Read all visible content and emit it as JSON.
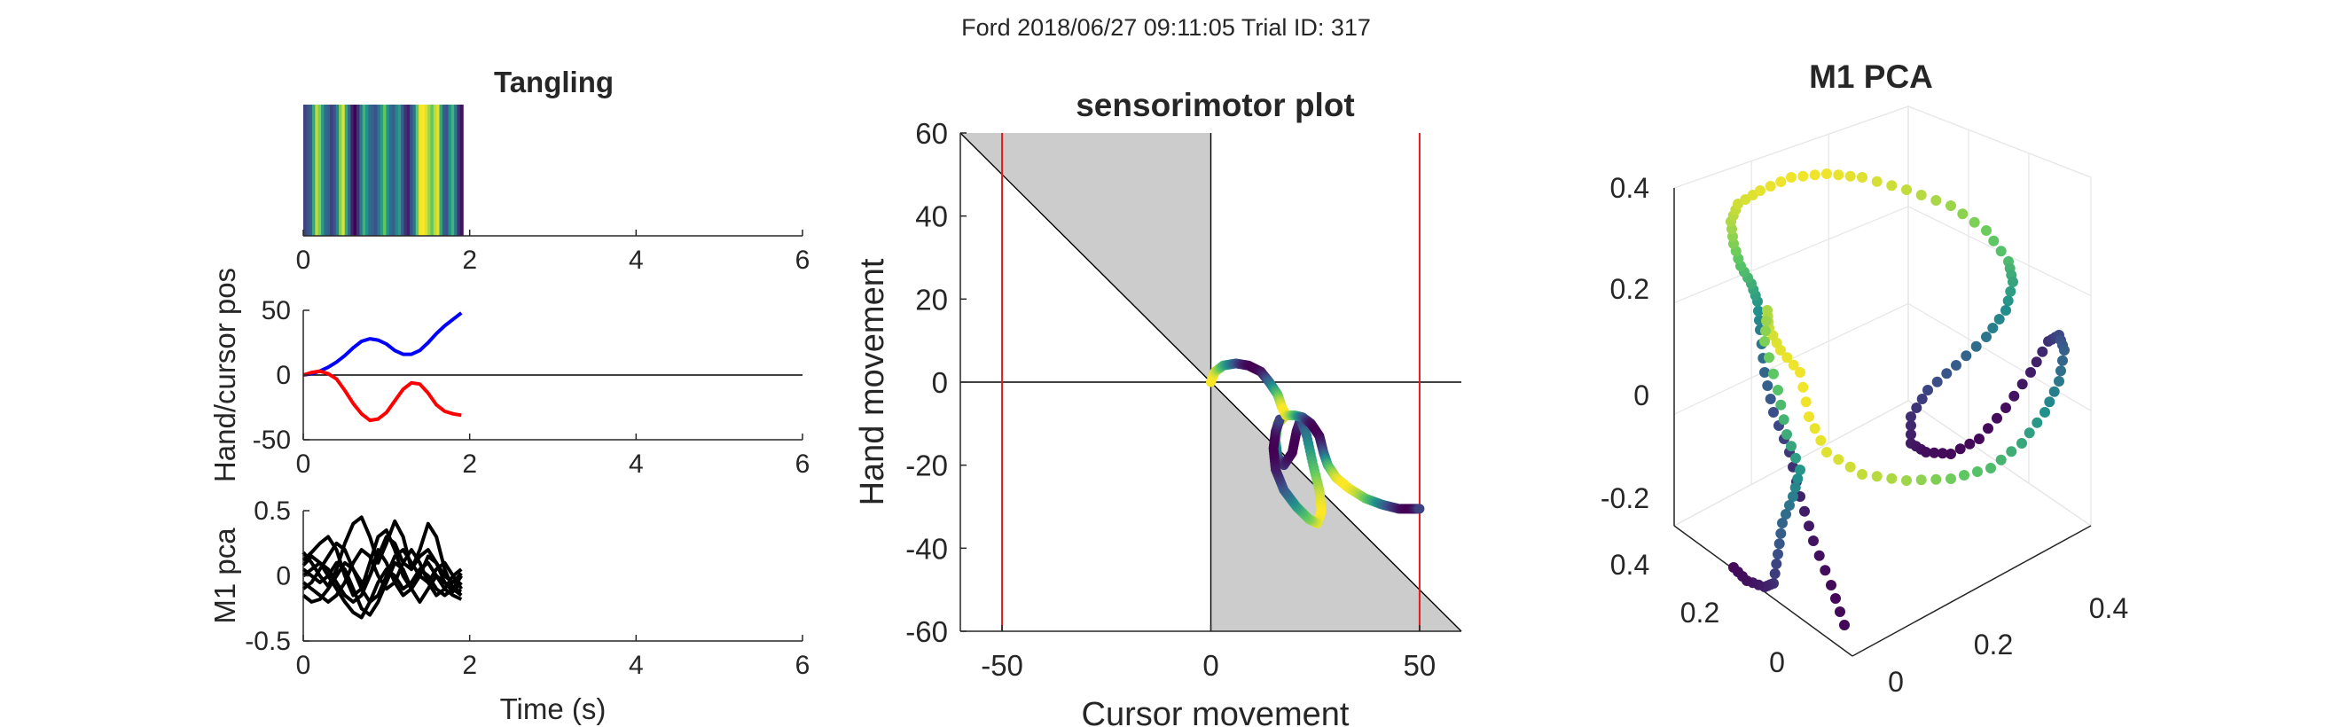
{
  "figure_title": "Ford 2018/06/27 09:11:05 Trial ID: 317",
  "colors": {
    "background": "#ffffff",
    "axis": "#262626",
    "hand": "#0000ff",
    "cursor": "#ff0000",
    "m1": "#000000",
    "shade": "#cccccc",
    "limit_lines": "#e41a1c",
    "zero_line": "#000000",
    "grid3d": "#e6e6e6",
    "viridis": [
      "#440154",
      "#3b528b",
      "#21918c",
      "#5ec962",
      "#fde725"
    ]
  },
  "chart_data": [
    {
      "id": "tangling",
      "type": "heatmap",
      "title": "Tangling",
      "xlim": [
        0,
        6
      ],
      "xticks": [
        0,
        2,
        4,
        6
      ],
      "x_extent": [
        0,
        1.92
      ],
      "colormap": "viridis",
      "values": [
        0.2,
        0.25,
        0.3,
        0.6,
        0.9,
        0.8,
        0.55,
        0.35,
        0.3,
        0.2,
        0.25,
        0.45,
        0.8,
        0.95,
        0.6,
        0.35,
        0.1,
        0.0,
        0.15,
        0.4,
        0.65,
        0.5,
        0.35,
        0.3,
        0.25,
        0.4,
        0.55,
        0.75,
        0.5,
        0.35,
        0.3,
        0.45,
        0.55,
        0.3,
        0.15,
        0.1,
        0.25,
        0.4,
        0.75,
        0.98,
        1.0,
        0.95,
        0.85,
        0.75,
        0.9,
        0.95,
        0.6,
        0.3,
        0.25,
        0.5,
        0.65,
        0.4,
        0.15,
        0.05
      ]
    },
    {
      "id": "hand-cursor",
      "type": "line",
      "xlim": [
        0,
        6
      ],
      "xticks": [
        0,
        2,
        4,
        6
      ],
      "ylim": [
        -50,
        50
      ],
      "yticks": [
        -50,
        0,
        50
      ],
      "ylabel": "Hand/cursor pos",
      "baseline": 0,
      "series": [
        {
          "color": "#0000ff",
          "x": [
            0,
            0.1,
            0.2,
            0.3,
            0.4,
            0.5,
            0.6,
            0.7,
            0.8,
            0.9,
            1.0,
            1.1,
            1.2,
            1.3,
            1.4,
            1.5,
            1.6,
            1.7,
            1.8,
            1.9
          ],
          "y": [
            0,
            1,
            3,
            6,
            10,
            15,
            21,
            26,
            28,
            27,
            24,
            19,
            16,
            16,
            19,
            25,
            32,
            38,
            43,
            48
          ]
        },
        {
          "color": "#ff0000",
          "x": [
            0,
            0.1,
            0.2,
            0.3,
            0.4,
            0.5,
            0.6,
            0.7,
            0.8,
            0.9,
            1.0,
            1.1,
            1.2,
            1.3,
            1.4,
            1.5,
            1.6,
            1.7,
            1.8,
            1.9
          ],
          "y": [
            0,
            2,
            3,
            1,
            -3,
            -12,
            -22,
            -30,
            -35,
            -34,
            -29,
            -20,
            -11,
            -6,
            -7,
            -14,
            -23,
            -28,
            -30,
            -31
          ]
        }
      ]
    },
    {
      "id": "m1-pca",
      "type": "line",
      "xlim": [
        0,
        6
      ],
      "xticks": [
        0,
        2,
        4,
        6
      ],
      "ylim": [
        -0.5,
        0.5
      ],
      "yticks": [
        -0.5,
        0,
        0.5
      ],
      "xlabel": "Time (s)",
      "ylabel": "M1 pca",
      "x": [
        0,
        0.1,
        0.2,
        0.3,
        0.4,
        0.5,
        0.6,
        0.7,
        0.8,
        0.9,
        1.0,
        1.1,
        1.2,
        1.3,
        1.4,
        1.5,
        1.6,
        1.7,
        1.8,
        1.9
      ],
      "series": [
        {
          "color": "#000000",
          "y": [
            0.18,
            0.1,
            0.0,
            -0.08,
            0.05,
            0.25,
            0.4,
            0.45,
            0.3,
            0.1,
            0.25,
            0.42,
            0.3,
            0.05,
            0.2,
            0.4,
            0.3,
            0.05,
            -0.1,
            0.0
          ]
        },
        {
          "color": "#000000",
          "y": [
            0.12,
            0.18,
            0.25,
            0.3,
            0.2,
            0.0,
            -0.15,
            -0.1,
            0.1,
            0.3,
            0.35,
            0.2,
            0.0,
            -0.1,
            0.0,
            0.15,
            0.1,
            -0.05,
            -0.12,
            -0.05
          ]
        },
        {
          "color": "#000000",
          "y": [
            -0.1,
            -0.05,
            0.05,
            0.15,
            0.25,
            0.2,
            0.05,
            -0.05,
            0.0,
            0.15,
            0.3,
            0.25,
            0.1,
            0.05,
            0.15,
            0.2,
            0.1,
            0.0,
            -0.05,
            0.02
          ]
        },
        {
          "color": "#000000",
          "y": [
            -0.15,
            -0.2,
            -0.18,
            -0.1,
            0.0,
            0.1,
            0.05,
            -0.1,
            -0.2,
            -0.15,
            0.0,
            0.15,
            0.2,
            0.1,
            0.0,
            -0.05,
            0.05,
            0.1,
            0.0,
            -0.1
          ]
        },
        {
          "color": "#000000",
          "y": [
            0.05,
            0.0,
            -0.05,
            0.0,
            0.1,
            0.05,
            -0.1,
            -0.25,
            -0.3,
            -0.2,
            -0.05,
            0.1,
            0.05,
            -0.1,
            -0.2,
            -0.1,
            0.0,
            -0.05,
            -0.1,
            -0.12
          ]
        },
        {
          "color": "#000000",
          "y": [
            0.0,
            0.05,
            0.1,
            0.05,
            -0.05,
            -0.15,
            -0.2,
            -0.15,
            0.0,
            0.2,
            0.1,
            -0.05,
            -0.15,
            -0.1,
            0.05,
            0.0,
            -0.1,
            -0.15,
            -0.1,
            -0.15
          ]
        },
        {
          "color": "#000000",
          "y": [
            -0.05,
            -0.1,
            -0.15,
            -0.2,
            -0.15,
            -0.05,
            0.1,
            0.2,
            0.15,
            0.0,
            -0.1,
            -0.05,
            0.1,
            0.2,
            0.1,
            -0.05,
            -0.15,
            -0.1,
            0.0,
            0.05
          ]
        },
        {
          "color": "#000000",
          "y": [
            0.08,
            0.15,
            0.1,
            0.0,
            -0.1,
            -0.2,
            -0.28,
            -0.32,
            -0.2,
            -0.05,
            0.05,
            0.0,
            -0.1,
            -0.05,
            0.05,
            0.1,
            0.0,
            -0.1,
            -0.15,
            -0.18
          ]
        }
      ]
    },
    {
      "id": "sensorimotor",
      "type": "scatter",
      "title": "sensorimotor plot",
      "xlabel": "Cursor movement",
      "ylabel": "Hand movement",
      "xlim": [
        -60,
        60
      ],
      "ylim": [
        -60,
        60
      ],
      "xticks": [
        -50,
        0,
        50
      ],
      "yticks": [
        -60,
        -40,
        -20,
        0,
        20,
        40,
        60
      ],
      "vertical_lines": [
        -50,
        50
      ],
      "shaded_regions": [
        {
          "points": [
            [
              -60,
              60
            ],
            [
              0,
              60
            ],
            [
              0,
              0
            ]
          ]
        },
        {
          "points": [
            [
              0,
              0
            ],
            [
              0,
              -60
            ],
            [
              60,
              -60
            ]
          ]
        }
      ],
      "diagonal": [
        [
          -60,
          60
        ],
        [
          60,
          -60
        ]
      ],
      "path": [
        {
          "x": 0,
          "y": 0
        },
        {
          "x": 1,
          "y": 2.5
        },
        {
          "x": 3,
          "y": 4
        },
        {
          "x": 6,
          "y": 4.5
        },
        {
          "x": 9,
          "y": 4
        },
        {
          "x": 12,
          "y": 2.5
        },
        {
          "x": 14,
          "y": 0
        },
        {
          "x": 16,
          "y": -3
        },
        {
          "x": 17,
          "y": -6
        },
        {
          "x": 18,
          "y": -8
        },
        {
          "x": 20,
          "y": -8
        },
        {
          "x": 22,
          "y": -8.5
        },
        {
          "x": 24,
          "y": -10
        },
        {
          "x": 26,
          "y": -13
        },
        {
          "x": 27,
          "y": -17
        },
        {
          "x": 28,
          "y": -20
        },
        {
          "x": 30,
          "y": -23
        },
        {
          "x": 33,
          "y": -25.5
        },
        {
          "x": 37,
          "y": -28
        },
        {
          "x": 41,
          "y": -29.5
        },
        {
          "x": 45,
          "y": -30.5
        },
        {
          "x": 48,
          "y": -30.5
        },
        {
          "x": 50,
          "y": -30.5
        }
      ],
      "loop": [
        {
          "x": 18,
          "y": -8
        },
        {
          "x": 16,
          "y": -10
        },
        {
          "x": 15.5,
          "y": -14
        },
        {
          "x": 16,
          "y": -18
        },
        {
          "x": 17.5,
          "y": -20
        },
        {
          "x": 19.5,
          "y": -17
        },
        {
          "x": 20.5,
          "y": -12
        },
        {
          "x": 21.5,
          "y": -9
        },
        {
          "x": 23,
          "y": -13
        },
        {
          "x": 24.5,
          "y": -20
        },
        {
          "x": 26,
          "y": -26
        },
        {
          "x": 26.5,
          "y": -31
        },
        {
          "x": 25.5,
          "y": -34
        },
        {
          "x": 23.5,
          "y": -33
        },
        {
          "x": 20.5,
          "y": -30
        },
        {
          "x": 17.5,
          "y": -26
        },
        {
          "x": 15.5,
          "y": -21
        },
        {
          "x": 15,
          "y": -16
        },
        {
          "x": 15.5,
          "y": -12
        },
        {
          "x": 16.5,
          "y": -9
        }
      ]
    },
    {
      "id": "m1-pca-3d",
      "type": "scatter",
      "title": "M1 PCA",
      "z_ticks": [
        "0.4",
        "0.2",
        "0",
        "-0.2"
      ],
      "x_ticks": [
        "0",
        "0.2",
        "0.4"
      ],
      "y_ticks": [
        "0.4",
        "0.2",
        "0"
      ]
    }
  ]
}
